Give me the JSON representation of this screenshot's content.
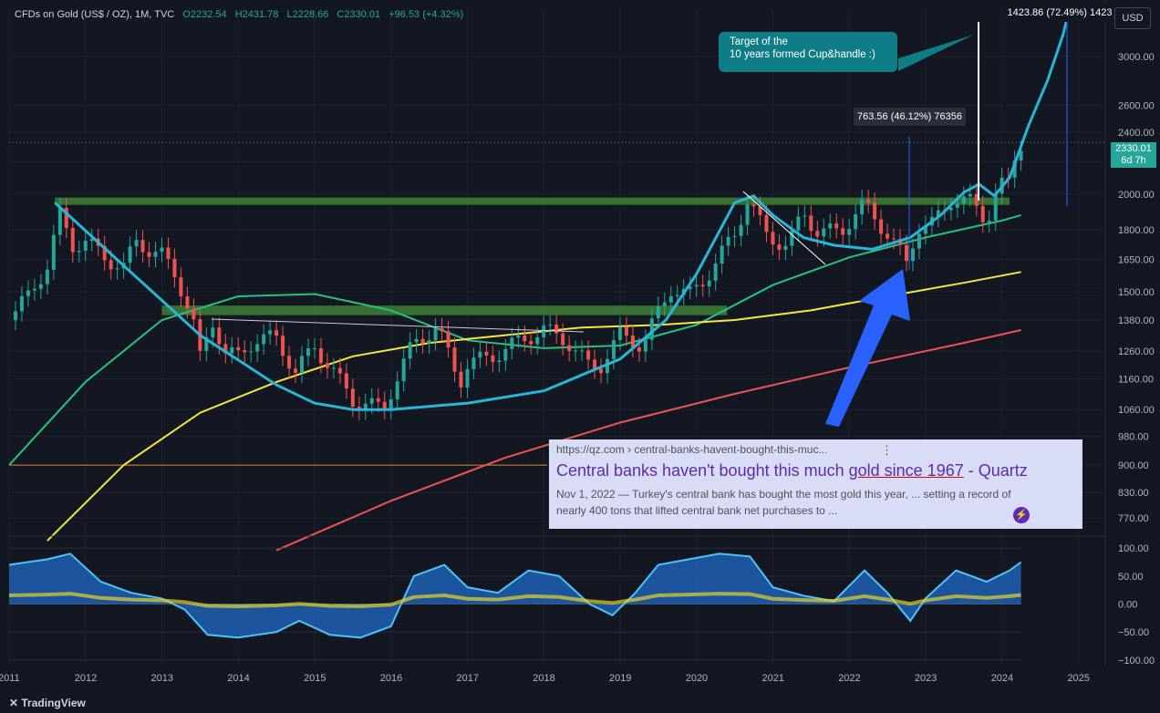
{
  "header": {
    "symbol": "CFDs on Gold (US$ / OZ), 1M, TVC",
    "open": "O2232.54",
    "high": "H2431.78",
    "low": "L2228.66",
    "close": "C2330.01",
    "change": "+96.53 (+4.32%)"
  },
  "currency_button": "USD",
  "last_price_tag": {
    "price": "2330.01",
    "countdown": "6d 7h"
  },
  "annotations": {
    "target_note_line1": "Target of the",
    "target_note_line2": "10 years formed Cup&handle :)",
    "measure_small": "763.56 (46.12%) 76356",
    "measure_large": "1423.86 (72.49%) 1423"
  },
  "search_result": {
    "url": "https://qz.com › central-banks-havent-bought-this-muc...",
    "title_pre": "Central banks haven't bought this much ",
    "title_hl": "gold since 1967",
    "title_post": " - Quartz",
    "snippet_line1": "Nov 1, 2022 — Turkey's central bank has bought the most gold this year, ... setting a record of",
    "snippet_line2": "nearly 400 tons that lifted central bank net purchases to ..."
  },
  "branding": "TradingView",
  "colors": {
    "background": "#131722",
    "up": "#26a69a",
    "down": "#ef5350",
    "cup_curve": "#29b6d6",
    "ma_green": "#26c281",
    "ma_yellow": "#f5e642",
    "ma_red": "#ef5350",
    "resistance_zone": "#3d7a35",
    "arrow": "#2962ff"
  },
  "chart_data": {
    "type": "candlestick",
    "timeframe": "1M",
    "x_ticks": [
      "2011",
      "2012",
      "2013",
      "2014",
      "2015",
      "2016",
      "2017",
      "2018",
      "2019",
      "2020",
      "2021",
      "2022",
      "2023",
      "2024",
      "2025"
    ],
    "y_ticks": [
      770,
      830,
      900,
      980,
      1060,
      1160,
      1260,
      1380,
      1500,
      1650,
      1800,
      2000,
      2200,
      2400,
      2600,
      3000
    ],
    "y_scale": "log",
    "ylim": [
      730,
      3450
    ],
    "price_series": [
      [
        2011.0,
        1380
      ],
      [
        2011.25,
        1480
      ],
      [
        2011.5,
        1620
      ],
      [
        2011.67,
        1880
      ],
      [
        2011.83,
        1720
      ],
      [
        2012.0,
        1740
      ],
      [
        2012.25,
        1660
      ],
      [
        2012.5,
        1610
      ],
      [
        2012.67,
        1740
      ],
      [
        2012.83,
        1700
      ],
      [
        2013.0,
        1670
      ],
      [
        2013.2,
        1560
      ],
      [
        2013.4,
        1390
      ],
      [
        2013.5,
        1230
      ],
      [
        2013.67,
        1380
      ],
      [
        2013.83,
        1250
      ],
      [
        2014.0,
        1240
      ],
      [
        2014.2,
        1300
      ],
      [
        2014.5,
        1310
      ],
      [
        2014.75,
        1180
      ],
      [
        2015.0,
        1280
      ],
      [
        2015.2,
        1200
      ],
      [
        2015.5,
        1090
      ],
      [
        2015.9,
        1060
      ],
      [
        2016.0,
        1120
      ],
      [
        2016.3,
        1290
      ],
      [
        2016.6,
        1350
      ],
      [
        2016.9,
        1150
      ],
      [
        2017.0,
        1210
      ],
      [
        2017.4,
        1250
      ],
      [
        2017.7,
        1300
      ],
      [
        2018.0,
        1340
      ],
      [
        2018.3,
        1300
      ],
      [
        2018.6,
        1200
      ],
      [
        2018.75,
        1210
      ],
      [
        2019.0,
        1320
      ],
      [
        2019.3,
        1280
      ],
      [
        2019.5,
        1410
      ],
      [
        2019.67,
        1520
      ],
      [
        2019.9,
        1480
      ],
      [
        2020.2,
        1600
      ],
      [
        2020.5,
        1780
      ],
      [
        2020.67,
        1970
      ],
      [
        2020.9,
        1780
      ],
      [
        2021.2,
        1710
      ],
      [
        2021.4,
        1900
      ],
      [
        2021.6,
        1780
      ],
      [
        2021.9,
        1800
      ],
      [
        2022.2,
        1940
      ],
      [
        2022.5,
        1780
      ],
      [
        2022.75,
        1630
      ],
      [
        2022.9,
        1820
      ],
      [
        2023.1,
        1830
      ],
      [
        2023.35,
        1980
      ],
      [
        2023.6,
        1950
      ],
      [
        2023.8,
        1850
      ],
      [
        2023.95,
        2050
      ],
      [
        2024.1,
        2060
      ],
      [
        2024.17,
        2230
      ],
      [
        2024.25,
        2330
      ]
    ],
    "moving_averages": [
      {
        "color": "green",
        "points": [
          [
            2011.0,
            900
          ],
          [
            2012.0,
            1150
          ],
          [
            2013.0,
            1380
          ],
          [
            2014.0,
            1480
          ],
          [
            2015.0,
            1490
          ],
          [
            2016.0,
            1420
          ],
          [
            2017.0,
            1300
          ],
          [
            2018.0,
            1270
          ],
          [
            2019.0,
            1280
          ],
          [
            2020.0,
            1360
          ],
          [
            2021.0,
            1530
          ],
          [
            2022.0,
            1660
          ],
          [
            2023.0,
            1760
          ],
          [
            2024.0,
            1850
          ],
          [
            2024.25,
            1880
          ]
        ]
      },
      {
        "color": "yellow",
        "points": [
          [
            2011.5,
            720
          ],
          [
            2012.5,
            900
          ],
          [
            2013.5,
            1050
          ],
          [
            2014.5,
            1150
          ],
          [
            2015.5,
            1240
          ],
          [
            2016.5,
            1290
          ],
          [
            2017.5,
            1320
          ],
          [
            2018.5,
            1350
          ],
          [
            2019.5,
            1360
          ],
          [
            2020.5,
            1380
          ],
          [
            2021.5,
            1420
          ],
          [
            2022.5,
            1480
          ],
          [
            2023.5,
            1540
          ],
          [
            2024.25,
            1590
          ]
        ]
      },
      {
        "color": "red",
        "points": [
          [
            2014.5,
            700
          ],
          [
            2016.0,
            810
          ],
          [
            2017.5,
            920
          ],
          [
            2019.0,
            1020
          ],
          [
            2020.5,
            1110
          ],
          [
            2022.0,
            1200
          ],
          [
            2023.5,
            1290
          ],
          [
            2024.25,
            1340
          ]
        ]
      }
    ],
    "cup_curve": [
      [
        2011.6,
        1950
      ],
      [
        2012.5,
        1620
      ],
      [
        2013.5,
        1320
      ],
      [
        2014.5,
        1140
      ],
      [
        2015.0,
        1080
      ],
      [
        2015.5,
        1060
      ],
      [
        2016.0,
        1060
      ],
      [
        2017.0,
        1080
      ],
      [
        2018.0,
        1120
      ],
      [
        2019.0,
        1230
      ],
      [
        2019.6,
        1380
      ],
      [
        2020.0,
        1580
      ],
      [
        2020.5,
        1950
      ],
      [
        2020.75,
        1990
      ],
      [
        2021.0,
        1880
      ],
      [
        2021.4,
        1760
      ],
      [
        2021.8,
        1720
      ],
      [
        2022.3,
        1700
      ],
      [
        2022.8,
        1760
      ],
      [
        2023.2,
        1880
      ],
      [
        2023.5,
        2010
      ],
      [
        2023.7,
        2060
      ],
      [
        2023.9,
        1990
      ],
      [
        2024.1,
        2100
      ],
      [
        2024.35,
        2450
      ],
      [
        2024.6,
        2800
      ],
      [
        2024.8,
        3200
      ],
      [
        2024.85,
        3350
      ]
    ],
    "resistance_zones": [
      {
        "x": [
          2011.6,
          2024.1
        ],
        "y": [
          1940,
          1980
        ]
      },
      {
        "x": [
          2013.0,
          2020.4
        ],
        "y": [
          1400,
          1440
        ]
      }
    ],
    "horizontal_line": 900,
    "oscillator": {
      "ylim": [
        -110,
        110
      ],
      "y_ticks": [
        100,
        50,
        0,
        -50,
        -100
      ],
      "wave_points": [
        [
          2011.0,
          70
        ],
        [
          2011.5,
          80
        ],
        [
          2011.8,
          90
        ],
        [
          2012.2,
          40
        ],
        [
          2012.6,
          20
        ],
        [
          2013.0,
          10
        ],
        [
          2013.3,
          -10
        ],
        [
          2013.6,
          -55
        ],
        [
          2014.0,
          -60
        ],
        [
          2014.5,
          -50
        ],
        [
          2014.8,
          -30
        ],
        [
          2015.2,
          -55
        ],
        [
          2015.6,
          -60
        ],
        [
          2016.0,
          -40
        ],
        [
          2016.3,
          50
        ],
        [
          2016.7,
          70
        ],
        [
          2017.0,
          30
        ],
        [
          2017.4,
          20
        ],
        [
          2017.8,
          60
        ],
        [
          2018.2,
          50
        ],
        [
          2018.6,
          0
        ],
        [
          2018.9,
          -20
        ],
        [
          2019.2,
          20
        ],
        [
          2019.5,
          70
        ],
        [
          2019.9,
          80
        ],
        [
          2020.3,
          90
        ],
        [
          2020.7,
          85
        ],
        [
          2021.0,
          30
        ],
        [
          2021.4,
          15
        ],
        [
          2021.8,
          5
        ],
        [
          2022.2,
          60
        ],
        [
          2022.5,
          20
        ],
        [
          2022.8,
          -30
        ],
        [
          2023.0,
          10
        ],
        [
          2023.4,
          60
        ],
        [
          2023.8,
          40
        ],
        [
          2024.1,
          60
        ],
        [
          2024.25,
          75
        ]
      ]
    }
  }
}
